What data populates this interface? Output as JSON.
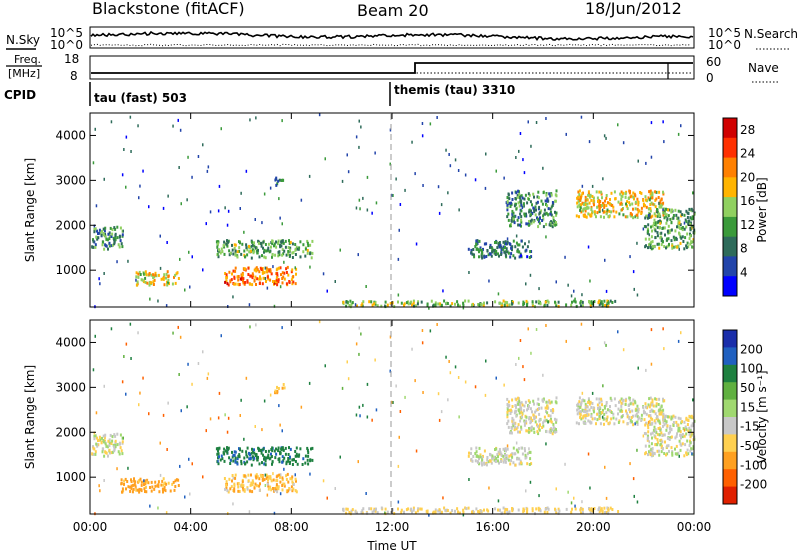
{
  "header": {
    "station": "Blackstone (fitACF)",
    "beam": "Beam 20",
    "date": "18/Jun/2012"
  },
  "noise_panel": {
    "left_label": "N.Sky",
    "right_label": "N.Search",
    "left_ticks": [
      "10^5",
      "10^0"
    ],
    "right_ticks": [
      "10^5",
      "10^0"
    ]
  },
  "freq_panel": {
    "left_label_top": "Freq.",
    "left_label_bottom": "[MHz]",
    "right_label": "Nave",
    "left_ticks": [
      "18",
      "8"
    ],
    "right_ticks": [
      "60",
      "0"
    ]
  },
  "cpid": {
    "label": "CPID",
    "segments": [
      {
        "name": "tau (fast) 503",
        "start_hour": 0
      },
      {
        "name": "themis (tau) 3310",
        "start_hour": 12
      }
    ]
  },
  "colors": {
    "power": [
      "#0000ff",
      "#2244aa",
      "#2e6b5a",
      "#3a9a3a",
      "#90d060",
      "#ffb400",
      "#ff8000",
      "#ff3000",
      "#d00000"
    ],
    "velocity_pos": [
      "#1a2eaa",
      "#2060c0",
      "#1e8040",
      "#60b040",
      "#a0d870"
    ],
    "velocity_zero": "#c8c8c8",
    "velocity_neg": [
      "#ffd050",
      "#ffa020",
      "#ff6000",
      "#e02000"
    ],
    "ground_scatter": "#bdbdbd"
  },
  "chart_data": [
    {
      "type": "heatmap",
      "title": "",
      "xlabel": "",
      "ylabel": "Slant Range [km]",
      "xlim": [
        0,
        24
      ],
      "ylim": [
        180,
        4500
      ],
      "x_ticks": [
        "00:00",
        "04:00",
        "08:00",
        "12:00",
        "16:00",
        "20:00",
        "00:00"
      ],
      "y_ticks": [
        "1000",
        "2000",
        "3000",
        "4000"
      ],
      "colorbar": {
        "label": "Power [dB]",
        "ticks": [
          "4",
          "8",
          "12",
          "16",
          "20",
          "24",
          "28"
        ],
        "range": [
          0,
          30
        ]
      },
      "echo_regions": [
        {
          "t0": 0.0,
          "t1": 1.3,
          "r0": 1500,
          "r1": 2000,
          "value": 10
        },
        {
          "t0": 1.8,
          "t1": 3.5,
          "r0": 700,
          "r1": 1000,
          "value": 18
        },
        {
          "t0": 5.3,
          "t1": 8.2,
          "r0": 700,
          "r1": 1100,
          "value": 22
        },
        {
          "t0": 5.0,
          "t1": 8.8,
          "r0": 1300,
          "r1": 1700,
          "value": 12
        },
        {
          "t0": 10.0,
          "t1": 21.0,
          "r0": 220,
          "r1": 350,
          "value": 14
        },
        {
          "t0": 15.0,
          "t1": 17.5,
          "r0": 1300,
          "r1": 1700,
          "value": 8
        },
        {
          "t0": 16.5,
          "t1": 18.5,
          "r0": 2000,
          "r1": 2800,
          "value": 10
        },
        {
          "t0": 19.3,
          "t1": 22.8,
          "r0": 2200,
          "r1": 2800,
          "value": 18
        },
        {
          "t0": 22.0,
          "t1": 24.0,
          "r0": 1500,
          "r1": 2400,
          "value": 12
        },
        {
          "t0": 7.3,
          "t1": 7.7,
          "r0": 2900,
          "r1": 3100,
          "value": 8
        }
      ]
    },
    {
      "type": "heatmap",
      "title": "",
      "xlabel": "Time UT",
      "ylabel": "Slant Range [km]",
      "xlim": [
        0,
        24
      ],
      "ylim": [
        180,
        4500
      ],
      "x_ticks": [
        "00:00",
        "04:00",
        "08:00",
        "12:00",
        "16:00",
        "20:00",
        "00:00"
      ],
      "y_ticks": [
        "1000",
        "2000",
        "3000",
        "4000"
      ],
      "colorbar": {
        "label": "Velocity [m s⁻¹]",
        "ticks": [
          "200",
          "100",
          "50",
          "15",
          "-15",
          "-50",
          "-100",
          "-200"
        ],
        "range": [
          -250,
          250
        ]
      },
      "echo_regions": [
        {
          "t0": 0.0,
          "t1": 1.3,
          "r0": 1500,
          "r1": 2000,
          "value": 0
        },
        {
          "t0": 1.2,
          "t1": 3.5,
          "r0": 700,
          "r1": 1000,
          "value": -70
        },
        {
          "t0": 5.3,
          "t1": 8.2,
          "r0": 700,
          "r1": 1100,
          "value": -40
        },
        {
          "t0": 5.0,
          "t1": 8.8,
          "r0": 1300,
          "r1": 1700,
          "value": 80
        },
        {
          "t0": 10.0,
          "t1": 21.0,
          "r0": 220,
          "r1": 350,
          "value": -20
        },
        {
          "t0": 15.0,
          "t1": 17.5,
          "r0": 1300,
          "r1": 1700,
          "value": 0
        },
        {
          "t0": 16.5,
          "t1": 18.5,
          "r0": 2000,
          "r1": 2800,
          "value": 0
        },
        {
          "t0": 19.3,
          "t1": 22.8,
          "r0": 2200,
          "r1": 2800,
          "value": 0
        },
        {
          "t0": 22.0,
          "t1": 24.0,
          "r0": 1500,
          "r1": 2400,
          "value": 0
        },
        {
          "t0": 7.3,
          "t1": 7.7,
          "r0": 2900,
          "r1": 3100,
          "value": -60
        }
      ]
    }
  ]
}
